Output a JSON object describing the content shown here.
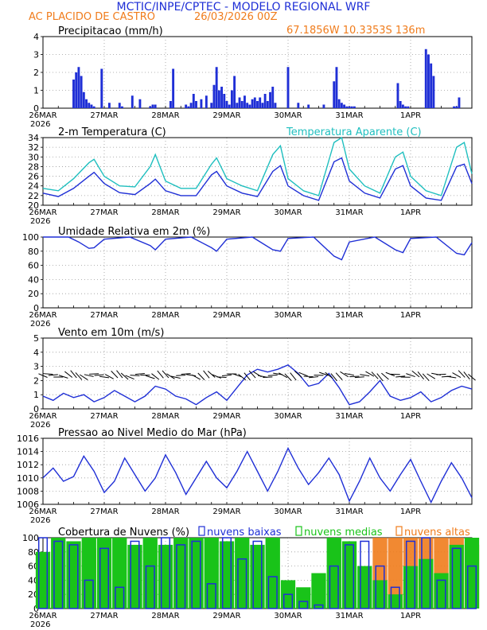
{
  "header": {
    "title": "MCTIC/INPE/CPTEC - MODELO REGIONAL WRF",
    "location": "AC PLACIDO DE CASTRO",
    "run": "26/03/2026 00Z",
    "coords": "67.1856W 10.3353S 136m"
  },
  "colors": {
    "blue": "#1f2fd6",
    "cyan": "#1fbfbf",
    "orange": "#f07c1c",
    "green": "#19c319",
    "black": "#000000",
    "grid": "#9a9a9a"
  },
  "x_axis": {
    "labels": [
      "26MAR",
      "27MAR",
      "28MAR",
      "29MAR",
      "30MAR",
      "31MAR",
      "1APR"
    ],
    "year": "2026"
  },
  "chart_data": [
    {
      "id": "precip",
      "type": "bar",
      "title": "Precipitacao (mm/h)",
      "ylim": [
        0,
        4
      ],
      "yticks": [
        0,
        1,
        2,
        3,
        4
      ],
      "x_hours": [
        12,
        13,
        14,
        15,
        16,
        17,
        18,
        19,
        20,
        23,
        26,
        30,
        31,
        35,
        38,
        42,
        43,
        44,
        50,
        51,
        56,
        57,
        58,
        59,
        60,
        62,
        64,
        66,
        67,
        68,
        69,
        70,
        71,
        72,
        73,
        74,
        75,
        76,
        77,
        78,
        79,
        80,
        81,
        82,
        83,
        84,
        85,
        86,
        87,
        88,
        89,
        90,
        91,
        96,
        100,
        104,
        110,
        114,
        115,
        116,
        117,
        118,
        119,
        120,
        121,
        122,
        139,
        140,
        141,
        142,
        143,
        150,
        151,
        152,
        153,
        161,
        162,
        163
      ],
      "values": [
        1.6,
        2.0,
        2.3,
        1.8,
        0.9,
        0.5,
        0.3,
        0.2,
        0.1,
        2.2,
        0.3,
        0.3,
        0.1,
        0.7,
        0.5,
        0.1,
        0.2,
        0.2,
        0.4,
        2.2,
        0.2,
        0.1,
        0.3,
        0.8,
        0.4,
        0.5,
        0.7,
        0.3,
        1.3,
        2.3,
        1.0,
        1.2,
        0.8,
        0.4,
        0.2,
        1.0,
        1.8,
        0.3,
        0.6,
        0.4,
        0.7,
        0.3,
        0.2,
        0.5,
        0.6,
        0.4,
        0.6,
        0.3,
        0.8,
        0.4,
        0.9,
        1.2,
        0.3,
        2.3,
        0.3,
        0.2,
        0.2,
        1.5,
        2.3,
        0.5,
        0.3,
        0.2,
        0.1,
        0.1,
        0.1,
        0.1,
        1.4,
        0.4,
        0.2,
        0.1,
        0.1,
        3.3,
        3.0,
        2.5,
        1.8,
        0.1,
        0.1,
        0.6
      ]
    },
    {
      "id": "temp",
      "type": "line",
      "title": "2-m Temperatura (C)",
      "legend": "Temperatura Aparente (C)",
      "ylim": [
        20,
        34
      ],
      "yticks": [
        20,
        22,
        24,
        26,
        28,
        30,
        32,
        34
      ],
      "x_hours": [
        0,
        6,
        12,
        18,
        20,
        24,
        30,
        36,
        42,
        44,
        48,
        54,
        60,
        66,
        68,
        72,
        78,
        84,
        90,
        93,
        96,
        102,
        108,
        114,
        117,
        120,
        126,
        132,
        138,
        141,
        144,
        150,
        156,
        162,
        165,
        168
      ],
      "series": [
        {
          "name": "2-m Temperatura",
          "color": "blue",
          "values": [
            22.5,
            21.8,
            23.5,
            26.0,
            26.8,
            24.5,
            22.6,
            22.2,
            24.5,
            25.4,
            23.0,
            22.0,
            22.0,
            26.3,
            27.0,
            24.0,
            22.5,
            21.8,
            27.0,
            28.2,
            24.0,
            22.0,
            21.0,
            29.0,
            29.8,
            25.0,
            22.5,
            21.5,
            27.5,
            28.2,
            24.0,
            21.5,
            21.0,
            28.0,
            28.5,
            24.5
          ]
        },
        {
          "name": "Temperatura Aparente",
          "color": "cyan",
          "values": [
            23.5,
            23.0,
            25.5,
            28.8,
            29.5,
            26.0,
            24.0,
            23.8,
            28.0,
            30.5,
            25.0,
            23.5,
            23.5,
            28.5,
            29.8,
            25.5,
            24.0,
            23.0,
            30.5,
            32.3,
            25.5,
            23.0,
            22.0,
            33.0,
            34.0,
            27.5,
            24.0,
            22.5,
            30.0,
            31.0,
            26.0,
            23.0,
            22.0,
            32.0,
            33.0,
            26.5
          ]
        }
      ]
    },
    {
      "id": "rh",
      "type": "line",
      "title": "Umidade Relativa em 2m (%)",
      "ylim": [
        0,
        100
      ],
      "yticks": [
        0,
        20,
        40,
        60,
        80,
        100
      ],
      "x_hours": [
        0,
        10,
        14,
        18,
        20,
        24,
        34,
        42,
        44,
        48,
        58,
        66,
        68,
        72,
        82,
        90,
        93,
        96,
        106,
        114,
        117,
        120,
        130,
        138,
        141,
        144,
        154,
        162,
        165,
        168
      ],
      "series": [
        {
          "name": "Umidade Relativa",
          "color": "blue",
          "values": [
            100,
            100,
            93,
            84,
            85,
            97,
            100,
            88,
            82,
            97,
            100,
            85,
            80,
            97,
            100,
            82,
            80,
            98,
            100,
            73,
            68,
            93,
            100,
            82,
            78,
            98,
            100,
            77,
            75,
            92
          ]
        }
      ]
    },
    {
      "id": "wind",
      "type": "line",
      "title": "Vento em 10m (m/s)",
      "ylim": [
        0,
        5
      ],
      "yticks": [
        0,
        1,
        2,
        3,
        4,
        5
      ],
      "x_hours": [
        0,
        4,
        8,
        12,
        16,
        20,
        24,
        28,
        32,
        36,
        40,
        44,
        48,
        52,
        56,
        60,
        64,
        68,
        72,
        76,
        80,
        84,
        88,
        92,
        96,
        100,
        104,
        108,
        112,
        116,
        120,
        124,
        128,
        132,
        136,
        140,
        144,
        148,
        152,
        156,
        160,
        164,
        168
      ],
      "series": [
        {
          "name": "Vento",
          "color": "blue",
          "values": [
            0.9,
            0.6,
            1.1,
            0.8,
            1.0,
            0.5,
            0.8,
            1.3,
            0.9,
            0.5,
            0.9,
            1.6,
            1.4,
            0.9,
            0.7,
            0.3,
            0.8,
            1.2,
            0.6,
            1.5,
            2.4,
            2.8,
            2.6,
            2.8,
            3.1,
            2.5,
            1.6,
            1.8,
            2.5,
            1.5,
            0.3,
            0.5,
            1.2,
            2.0,
            0.9,
            0.6,
            0.8,
            1.2,
            0.5,
            0.8,
            1.3,
            1.6,
            1.4
          ]
        }
      ],
      "barbs_note": "wind barbs plotted along each hour"
    },
    {
      "id": "press",
      "type": "line",
      "title": "Pressao ao Nivel Medio do Mar (hPa)",
      "ylim": [
        1006,
        1016
      ],
      "yticks": [
        1006,
        1008,
        1010,
        1012,
        1014,
        1016
      ],
      "x_hours": [
        0,
        4,
        8,
        12,
        16,
        20,
        24,
        28,
        32,
        36,
        40,
        44,
        48,
        52,
        56,
        60,
        64,
        68,
        72,
        76,
        80,
        84,
        88,
        92,
        96,
        100,
        104,
        108,
        112,
        116,
        120,
        124,
        128,
        132,
        136,
        140,
        144,
        148,
        152,
        156,
        160,
        164,
        168
      ],
      "series": [
        {
          "name": "Pressao",
          "color": "blue",
          "values": [
            1010.0,
            1011.5,
            1009.5,
            1010.2,
            1013.3,
            1011.0,
            1007.8,
            1009.5,
            1013.0,
            1010.5,
            1008.0,
            1010.0,
            1013.5,
            1010.8,
            1007.5,
            1010.0,
            1012.5,
            1010.0,
            1008.5,
            1011.0,
            1014.0,
            1011.0,
            1008.0,
            1011.0,
            1014.5,
            1011.5,
            1009.0,
            1010.8,
            1013.0,
            1010.5,
            1006.5,
            1009.5,
            1013.0,
            1010.0,
            1008.0,
            1010.5,
            1012.8,
            1009.5,
            1006.3,
            1009.5,
            1012.3,
            1010.0,
            1007.0
          ]
        }
      ]
    },
    {
      "id": "clouds",
      "type": "bar",
      "title": "Cobertura de Nuvens (%)",
      "legend": [
        "nuvens baixas",
        "nuvens medias",
        "nuvens altas"
      ],
      "ylim": [
        0,
        100
      ],
      "yticks": [
        0,
        20,
        40,
        60,
        80,
        100
      ],
      "x_hours": [
        0,
        6,
        12,
        18,
        24,
        30,
        36,
        42,
        48,
        54,
        60,
        66,
        72,
        78,
        84,
        90,
        96,
        102,
        108,
        114,
        120,
        126,
        132,
        138,
        144,
        150,
        156,
        162,
        168
      ],
      "series": [
        {
          "name": "nuvens baixas",
          "color": "blue",
          "values": [
            100,
            95,
            90,
            40,
            85,
            30,
            95,
            60,
            100,
            90,
            95,
            35,
            100,
            70,
            95,
            45,
            20,
            10,
            5,
            60,
            90,
            95,
            60,
            30,
            95,
            100,
            40,
            85,
            60
          ]
        },
        {
          "name": "nuvens medias",
          "color": "green",
          "values": [
            80,
            100,
            95,
            100,
            100,
            100,
            90,
            100,
            90,
            100,
            100,
            100,
            95,
            100,
            90,
            100,
            40,
            30,
            50,
            100,
            95,
            60,
            40,
            20,
            60,
            70,
            50,
            90,
            100
          ]
        },
        {
          "name": "nuvens altas",
          "color": "orange",
          "values": [
            0,
            0,
            0,
            85,
            0,
            0,
            0,
            0,
            0,
            0,
            0,
            0,
            0,
            0,
            0,
            0,
            0,
            0,
            0,
            0,
            0,
            0,
            100,
            100,
            100,
            100,
            100,
            100,
            90
          ]
        }
      ]
    }
  ]
}
